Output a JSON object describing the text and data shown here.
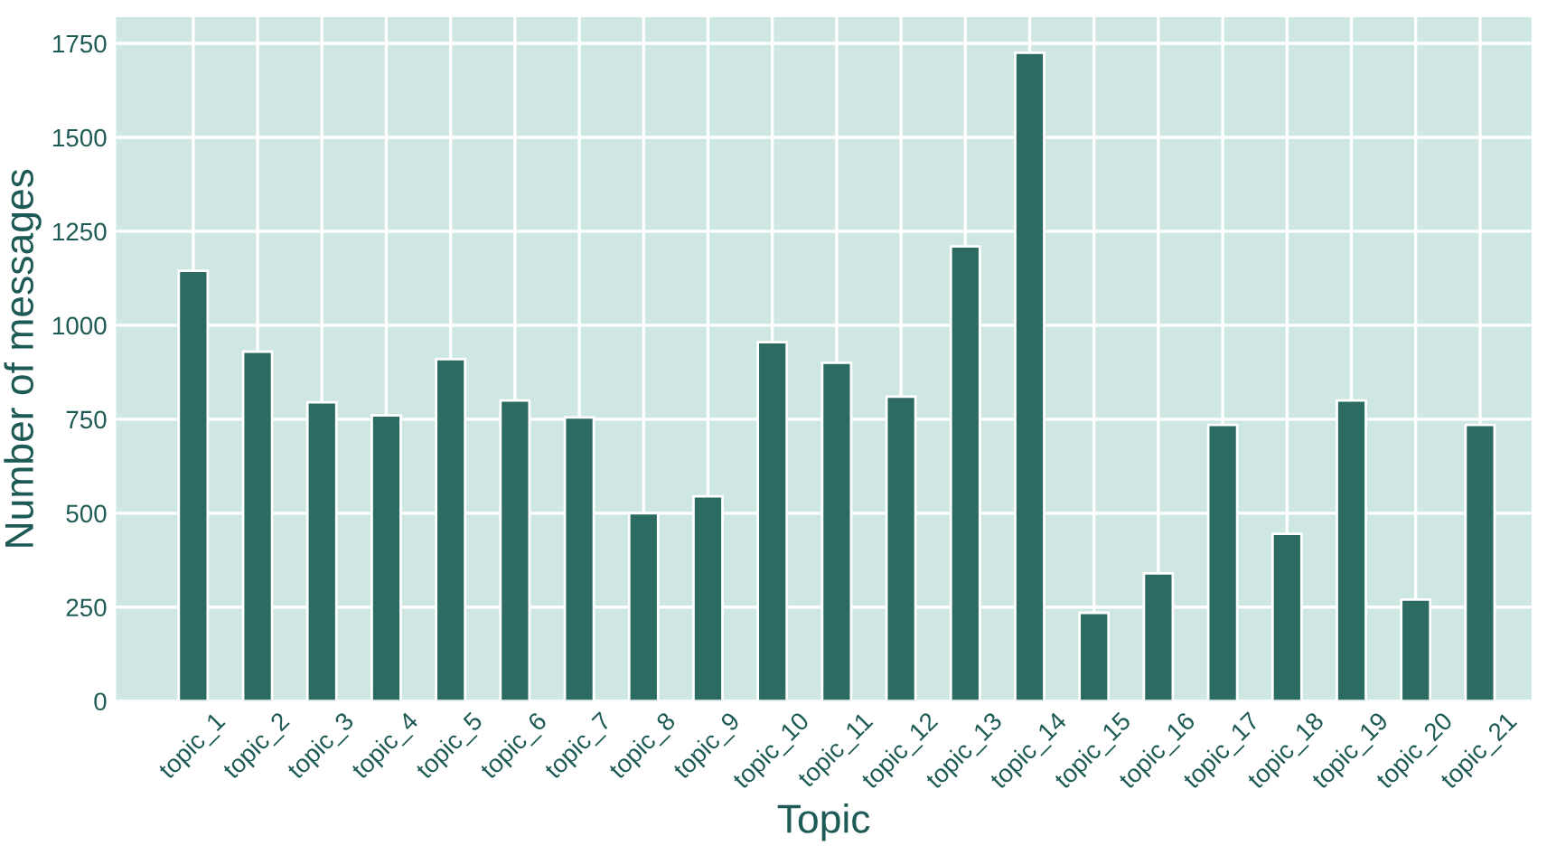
{
  "chart_data": {
    "type": "bar",
    "xlabel": "Topic",
    "ylabel": "Number of messages",
    "categories": [
      "topic_1",
      "topic_2",
      "topic_3",
      "topic_4",
      "topic_5",
      "topic_6",
      "topic_7",
      "topic_8",
      "topic_9",
      "topic_10",
      "topic_11",
      "topic_12",
      "topic_13",
      "topic_14",
      "topic_15",
      "topic_16",
      "topic_17",
      "topic_18",
      "topic_19",
      "topic_20",
      "topic_21"
    ],
    "values": [
      1145,
      930,
      795,
      760,
      910,
      800,
      755,
      500,
      545,
      955,
      900,
      810,
      1210,
      1725,
      235,
      340,
      735,
      445,
      800,
      270,
      735
    ],
    "color": "#2b6b61",
    "ylim": [
      0,
      1820
    ],
    "yticks": [
      0,
      250,
      500,
      750,
      1000,
      1250,
      1500,
      1750
    ],
    "grid": true
  }
}
